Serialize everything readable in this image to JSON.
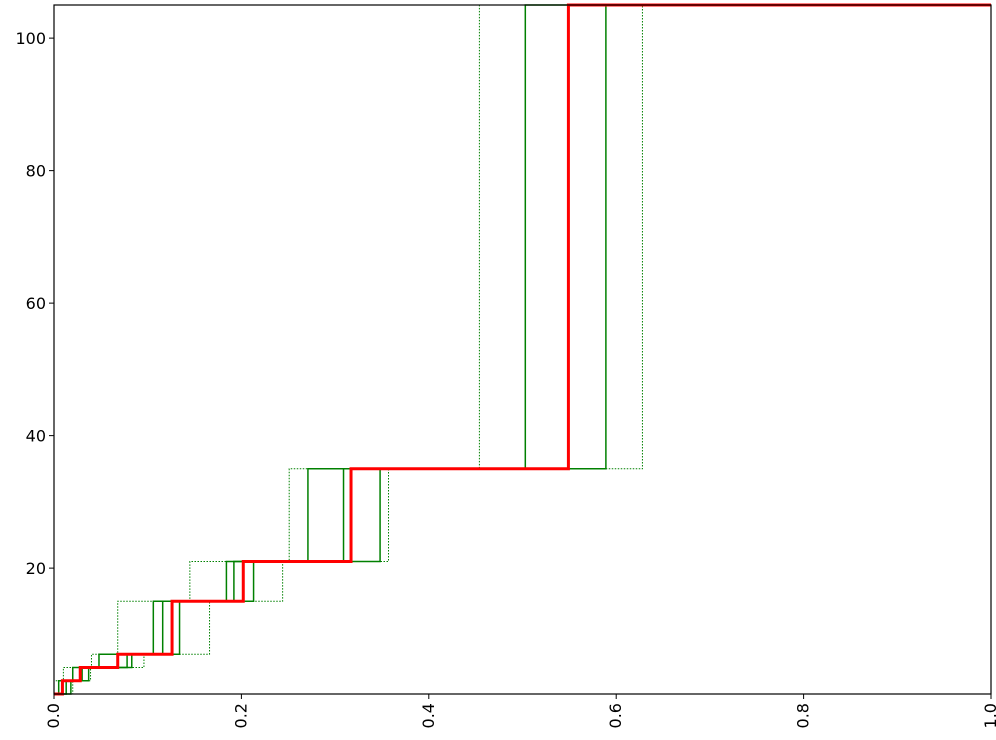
{
  "chart_data": {
    "type": "line",
    "title": "",
    "xlabel": "",
    "ylabel": "",
    "xlim": [
      0.0,
      1.0
    ],
    "ylim": [
      1,
      105
    ],
    "grid": false,
    "xticks": [
      {
        "value": 0.0,
        "label": "0.0"
      },
      {
        "value": 0.2,
        "label": "0.2"
      },
      {
        "value": 0.4,
        "label": "0.4"
      },
      {
        "value": 0.6,
        "label": "0.6"
      },
      {
        "value": 0.8,
        "label": "0.8"
      },
      {
        "value": 1.0,
        "label": "1.0"
      }
    ],
    "yticks": [
      {
        "value": 20,
        "label": "20"
      },
      {
        "value": 40,
        "label": "40"
      },
      {
        "value": 60,
        "label": "60"
      },
      {
        "value": 80,
        "label": "80"
      },
      {
        "value": 100,
        "label": "100"
      }
    ],
    "levels": [
      1,
      3,
      5,
      7,
      15,
      21,
      35,
      105
    ],
    "series": [
      {
        "style": "solid-thick",
        "color": "#ff0000",
        "steps": [
          0.0,
          0.009,
          0.028,
          0.068,
          0.126,
          0.202,
          0.317,
          0.549,
          1.0
        ]
      },
      {
        "style": "solid",
        "color": "#008000",
        "steps": [
          0.0,
          0.005,
          0.02,
          0.048,
          0.106,
          0.184,
          0.271,
          0.503,
          1.0
        ]
      },
      {
        "style": "solid",
        "color": "#008000",
        "steps": [
          0.0,
          0.013,
          0.037,
          0.078,
          0.116,
          0.192,
          0.309,
          0.549,
          1.0
        ]
      },
      {
        "style": "solid",
        "color": "#008000",
        "steps": [
          0.0,
          0.018,
          0.03,
          0.083,
          0.134,
          0.213,
          0.348,
          0.589,
          1.0
        ]
      },
      {
        "style": "dotted",
        "color": "#008000",
        "steps": [
          0.0,
          0.0,
          0.01,
          0.04,
          0.068,
          0.145,
          0.251,
          0.454,
          1.0
        ]
      },
      {
        "style": "dotted",
        "color": "#008000",
        "steps": [
          0.0,
          0.02,
          0.039,
          0.096,
          0.166,
          0.244,
          0.357,
          0.628,
          1.0
        ]
      }
    ]
  }
}
